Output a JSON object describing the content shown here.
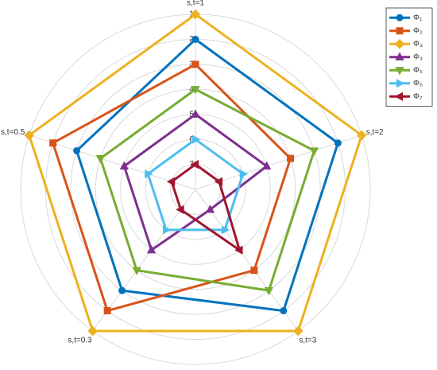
{
  "chart_data": {
    "type": "radar",
    "categories": [
      "s,t=1",
      "s,t=2",
      "s,t=3",
      "s,t=0.3",
      "s,t=0.5"
    ],
    "rlim": [
      8,
      1
    ],
    "rticks": [
      1,
      2,
      3,
      4,
      5,
      6,
      7
    ],
    "grid": true,
    "legend": "northeast",
    "series": [
      {
        "name": "Φ₁",
        "color": "#0072bd",
        "marker": "circle",
        "values": [
          2,
          2,
          2,
          3,
          3
        ]
      },
      {
        "name": "Φ₂",
        "color": "#d95319",
        "marker": "square",
        "values": [
          3,
          4,
          4,
          2,
          2
        ]
      },
      {
        "name": "Φ₃",
        "color": "#edb120",
        "marker": "diamond",
        "values": [
          1,
          1,
          1,
          1,
          1
        ]
      },
      {
        "name": "Φ₄",
        "color": "#7e2f8e",
        "marker": "triangle-up",
        "values": [
          5,
          5,
          7,
          5,
          5
        ]
      },
      {
        "name": "Φ₅",
        "color": "#77ac30",
        "marker": "triangle-down",
        "values": [
          4,
          3,
          3,
          4,
          4
        ]
      },
      {
        "name": "Φ₆",
        "color": "#4dbeee",
        "marker": "triangle-right",
        "values": [
          6,
          6,
          6,
          6,
          6
        ]
      },
      {
        "name": "Φ₇",
        "color": "#a2142f",
        "marker": "triangle-left",
        "values": [
          7,
          7,
          5,
          7,
          7
        ]
      }
    ]
  }
}
